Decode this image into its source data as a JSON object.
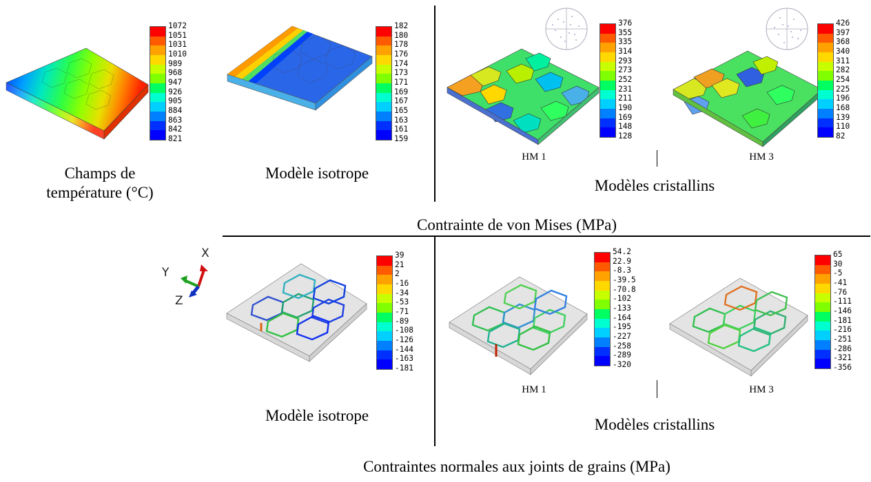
{
  "colormap": [
    "#ff0000",
    "#ff5a00",
    "#ffa200",
    "#ffd800",
    "#c8ff00",
    "#80ff00",
    "#20ff00",
    "#00ff60",
    "#00ffd0",
    "#00d0ff",
    "#0080ff",
    "#0030ff",
    "#0000ff"
  ],
  "top_row": {
    "panel1": {
      "caption_line1": "Champs de",
      "caption_line2": "température (°C)",
      "legend": [
        "1072",
        "1051",
        "1031",
        "1010",
        "989",
        "968",
        "947",
        "926",
        "905",
        "884",
        "863",
        "842",
        "821"
      ]
    },
    "panel2": {
      "caption": "Modèle isotrope",
      "legend": [
        "182",
        "180",
        "178",
        "176",
        "174",
        "173",
        "171",
        "169",
        "167",
        "165",
        "163",
        "161",
        "159"
      ]
    },
    "panel3": {
      "label": "HM 1",
      "legend": [
        "376",
        "355",
        "335",
        "314",
        "293",
        "273",
        "252",
        "231",
        "211",
        "190",
        "169",
        "148",
        "128"
      ]
    },
    "panel4": {
      "label": "HM 3",
      "legend": [
        "426",
        "397",
        "368",
        "340",
        "311",
        "282",
        "254",
        "225",
        "196",
        "168",
        "139",
        "110",
        "82"
      ]
    },
    "group_caption": "Modèles cristallins",
    "section_title": "Contrainte de von Mises (MPa)"
  },
  "bottom_row": {
    "axes": {
      "x": "X",
      "y": "Y",
      "z": "Z"
    },
    "panel1": {
      "caption": "Modèle isotrope",
      "legend": [
        "39",
        "21",
        "2",
        "-16",
        "-34",
        "-53",
        "-71",
        "-89",
        "-108",
        "-126",
        "-144",
        "-163",
        "-181"
      ]
    },
    "panel2": {
      "label": "HM 1",
      "legend": [
        "54.2",
        "22.9",
        "-8.3",
        "-39.5",
        "-70.8",
        "-102",
        "-133",
        "-164",
        "-195",
        "-227",
        "-258",
        "-289",
        "-320"
      ]
    },
    "panel3": {
      "label": "HM 3",
      "legend": [
        "65",
        "30",
        "-5",
        "-41",
        "-76",
        "-111",
        "-146",
        "-181",
        "-216",
        "-251",
        "-286",
        "-321",
        "-356"
      ]
    },
    "group_caption": "Modèles cristallins",
    "section_title": "Contraintes normales aux joints de grains (MPa)"
  }
}
